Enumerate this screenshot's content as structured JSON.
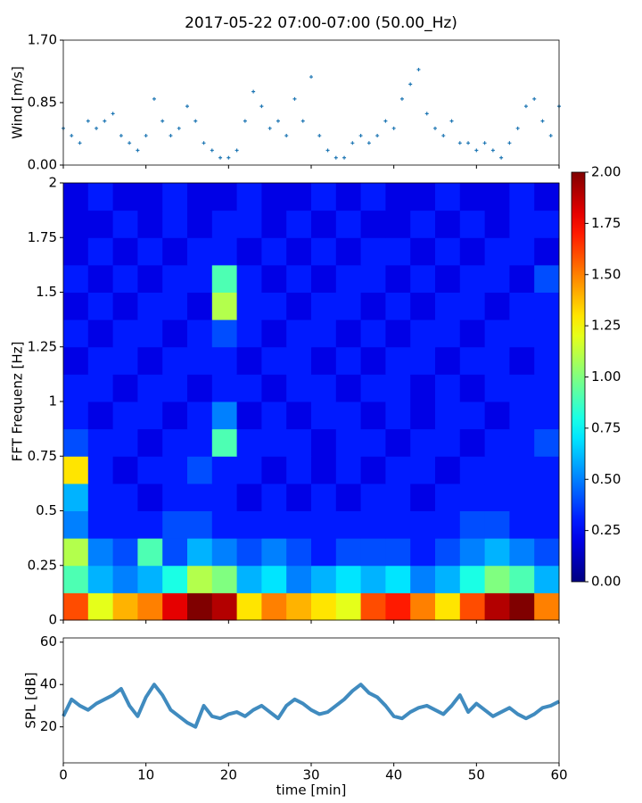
{
  "chart_data": [
    {
      "type": "scatter",
      "title": "2017-05-22 07:00-07:00 (50.00_Hz)",
      "ylabel": "Wind [m/s]",
      "color": "#1f77b4",
      "x": [
        0,
        1,
        2,
        3,
        4,
        5,
        6,
        7,
        8,
        9,
        10,
        11,
        12,
        13,
        14,
        15,
        16,
        17,
        18,
        19,
        20,
        21,
        22,
        23,
        24,
        25,
        26,
        27,
        28,
        29,
        30,
        31,
        32,
        33,
        34,
        35,
        36,
        37,
        38,
        39,
        40,
        41,
        42,
        43,
        44,
        45,
        46,
        47,
        48,
        49,
        50,
        51,
        52,
        53,
        54,
        55,
        56,
        57,
        58,
        59,
        60
      ],
      "values": [
        0.5,
        0.4,
        0.3,
        0.6,
        0.5,
        0.6,
        0.7,
        0.4,
        0.3,
        0.2,
        0.4,
        0.9,
        0.6,
        0.4,
        0.5,
        0.8,
        0.6,
        0.3,
        0.2,
        0.1,
        0.1,
        0.2,
        0.6,
        1.0,
        0.8,
        0.5,
        0.6,
        0.4,
        0.9,
        0.6,
        1.2,
        0.4,
        0.2,
        0.1,
        0.1,
        0.3,
        0.4,
        0.3,
        0.4,
        0.6,
        0.5,
        0.9,
        1.1,
        1.3,
        0.7,
        0.5,
        0.4,
        0.6,
        0.3,
        0.3,
        0.2,
        0.3,
        0.2,
        0.1,
        0.3,
        0.5,
        0.8,
        0.9,
        0.6,
        0.4,
        0.8
      ],
      "xlim": [
        0,
        60
      ],
      "xticks": [
        0,
        10,
        20,
        30,
        40,
        50,
        60
      ],
      "ylim": [
        0,
        1.7
      ],
      "yticks": [
        {
          "value": 0,
          "label": "0.00"
        },
        {
          "value": 0.85,
          "label": "0.85"
        },
        {
          "value": 1.7,
          "label": "1.70"
        }
      ]
    },
    {
      "type": "heatmap",
      "ylabel": "FFT Frequenz [Hz]",
      "colormap": "jet",
      "clim": [
        0,
        2
      ],
      "cticks": [
        {
          "value": 0,
          "label": "0.00"
        },
        {
          "value": 0.25,
          "label": "0.25"
        },
        {
          "value": 0.5,
          "label": "0.50"
        },
        {
          "value": 0.75,
          "label": "0.75"
        },
        {
          "value": 1,
          "label": "1.00"
        },
        {
          "value": 1.25,
          "label": "1.25"
        },
        {
          "value": 1.5,
          "label": "1.50"
        },
        {
          "value": 1.75,
          "label": "1.75"
        },
        {
          "value": 2,
          "label": "2.00"
        }
      ],
      "xbins": [
        0,
        3,
        6,
        9,
        12,
        15,
        18,
        21,
        24,
        27,
        30,
        33,
        36,
        39,
        42,
        45,
        48,
        51,
        54,
        57,
        60
      ],
      "ybins": [
        0,
        0.125,
        0.25,
        0.375,
        0.5,
        0.625,
        0.75,
        0.875,
        1,
        1.125,
        1.25,
        1.375,
        1.5,
        1.625,
        1.75,
        1.875,
        2
      ],
      "values": [
        [
          1.6,
          1.2,
          1.4,
          1.5,
          1.8,
          2.0,
          1.9,
          1.3,
          1.5,
          1.4,
          1.3,
          1.2,
          1.6,
          1.7,
          1.5,
          1.3,
          1.6,
          1.9,
          2.0,
          1.5
        ],
        [
          0.9,
          0.6,
          0.5,
          0.6,
          0.8,
          1.1,
          1.0,
          0.6,
          0.7,
          0.5,
          0.6,
          0.7,
          0.6,
          0.7,
          0.5,
          0.6,
          0.8,
          1.0,
          0.9,
          0.6
        ],
        [
          1.1,
          0.5,
          0.4,
          0.9,
          0.4,
          0.6,
          0.5,
          0.4,
          0.5,
          0.4,
          0.3,
          0.4,
          0.4,
          0.4,
          0.3,
          0.4,
          0.5,
          0.6,
          0.5,
          0.4
        ],
        [
          0.5,
          0.3,
          0.3,
          0.3,
          0.4,
          0.4,
          0.3,
          0.3,
          0.3,
          0.3,
          0.3,
          0.3,
          0.3,
          0.3,
          0.3,
          0.3,
          0.4,
          0.4,
          0.3,
          0.3
        ],
        [
          0.6,
          0.3,
          0.3,
          0.2,
          0.3,
          0.3,
          0.3,
          0.2,
          0.3,
          0.2,
          0.3,
          0.2,
          0.3,
          0.3,
          0.2,
          0.3,
          0.3,
          0.3,
          0.3,
          0.3
        ],
        [
          1.3,
          0.3,
          0.2,
          0.3,
          0.3,
          0.4,
          0.3,
          0.3,
          0.2,
          0.3,
          0.2,
          0.3,
          0.2,
          0.3,
          0.3,
          0.2,
          0.3,
          0.3,
          0.3,
          0.3
        ],
        [
          0.4,
          0.3,
          0.3,
          0.2,
          0.3,
          0.3,
          0.9,
          0.3,
          0.3,
          0.3,
          0.2,
          0.3,
          0.3,
          0.2,
          0.3,
          0.3,
          0.2,
          0.3,
          0.3,
          0.4
        ],
        [
          0.3,
          0.2,
          0.3,
          0.3,
          0.2,
          0.3,
          0.5,
          0.2,
          0.3,
          0.2,
          0.3,
          0.3,
          0.2,
          0.3,
          0.2,
          0.3,
          0.3,
          0.2,
          0.3,
          0.3
        ],
        [
          0.3,
          0.3,
          0.2,
          0.3,
          0.3,
          0.2,
          0.3,
          0.3,
          0.2,
          0.3,
          0.3,
          0.2,
          0.3,
          0.3,
          0.2,
          0.3,
          0.2,
          0.3,
          0.3,
          0.3
        ],
        [
          0.2,
          0.3,
          0.3,
          0.2,
          0.3,
          0.3,
          0.3,
          0.2,
          0.3,
          0.3,
          0.2,
          0.3,
          0.2,
          0.3,
          0.3,
          0.2,
          0.3,
          0.3,
          0.2,
          0.3
        ],
        [
          0.3,
          0.2,
          0.3,
          0.3,
          0.2,
          0.3,
          0.4,
          0.3,
          0.2,
          0.3,
          0.3,
          0.2,
          0.3,
          0.2,
          0.3,
          0.3,
          0.2,
          0.3,
          0.3,
          0.3
        ],
        [
          0.2,
          0.3,
          0.2,
          0.3,
          0.3,
          0.2,
          1.1,
          0.3,
          0.3,
          0.2,
          0.3,
          0.3,
          0.2,
          0.3,
          0.2,
          0.3,
          0.3,
          0.2,
          0.3,
          0.3
        ],
        [
          0.3,
          0.2,
          0.3,
          0.2,
          0.3,
          0.3,
          0.9,
          0.3,
          0.2,
          0.3,
          0.2,
          0.3,
          0.3,
          0.2,
          0.3,
          0.2,
          0.3,
          0.3,
          0.2,
          0.4
        ],
        [
          0.2,
          0.3,
          0.2,
          0.3,
          0.2,
          0.3,
          0.3,
          0.2,
          0.3,
          0.2,
          0.3,
          0.2,
          0.3,
          0.3,
          0.2,
          0.3,
          0.2,
          0.3,
          0.3,
          0.2
        ],
        [
          0.2,
          0.2,
          0.3,
          0.2,
          0.3,
          0.2,
          0.3,
          0.3,
          0.2,
          0.3,
          0.2,
          0.3,
          0.2,
          0.2,
          0.3,
          0.2,
          0.3,
          0.2,
          0.3,
          0.3
        ],
        [
          0.2,
          0.3,
          0.2,
          0.2,
          0.3,
          0.2,
          0.2,
          0.3,
          0.2,
          0.2,
          0.3,
          0.2,
          0.3,
          0.2,
          0.2,
          0.3,
          0.2,
          0.2,
          0.3,
          0.2
        ]
      ],
      "xlim": [
        0,
        60
      ],
      "xticks": [
        0,
        10,
        20,
        30,
        40,
        50,
        60
      ],
      "ylim": [
        0,
        2
      ],
      "yticks": [
        0,
        0.25,
        0.5,
        0.75,
        1,
        1.25,
        1.5,
        1.75,
        2
      ]
    },
    {
      "type": "line",
      "ylabel": "SPL [dB]",
      "xlabel": "time [min]",
      "color": "#1f77b4",
      "x": [
        0,
        1,
        2,
        3,
        4,
        5,
        6,
        7,
        8,
        9,
        10,
        11,
        12,
        13,
        14,
        15,
        16,
        17,
        18,
        19,
        20,
        21,
        22,
        23,
        24,
        25,
        26,
        27,
        28,
        29,
        30,
        31,
        32,
        33,
        34,
        35,
        36,
        37,
        38,
        39,
        40,
        41,
        42,
        43,
        44,
        45,
        46,
        47,
        48,
        49,
        50,
        51,
        52,
        53,
        54,
        55,
        56,
        57,
        58,
        59,
        60
      ],
      "values": [
        25,
        33,
        30,
        28,
        31,
        33,
        35,
        38,
        30,
        25,
        34,
        40,
        35,
        28,
        25,
        22,
        20,
        30,
        25,
        24,
        26,
        27,
        25,
        28,
        30,
        27,
        24,
        30,
        33,
        31,
        28,
        26,
        27,
        30,
        33,
        37,
        40,
        36,
        34,
        30,
        25,
        24,
        27,
        29,
        30,
        28,
        26,
        30,
        35,
        27,
        31,
        28,
        25,
        27,
        29,
        26,
        24,
        26,
        29,
        30,
        32
      ],
      "xlim": [
        0,
        60
      ],
      "xticks": [
        0,
        10,
        20,
        30,
        40,
        50,
        60
      ],
      "ylim": [
        3,
        62
      ],
      "yticks": [
        20,
        40,
        60
      ]
    }
  ]
}
